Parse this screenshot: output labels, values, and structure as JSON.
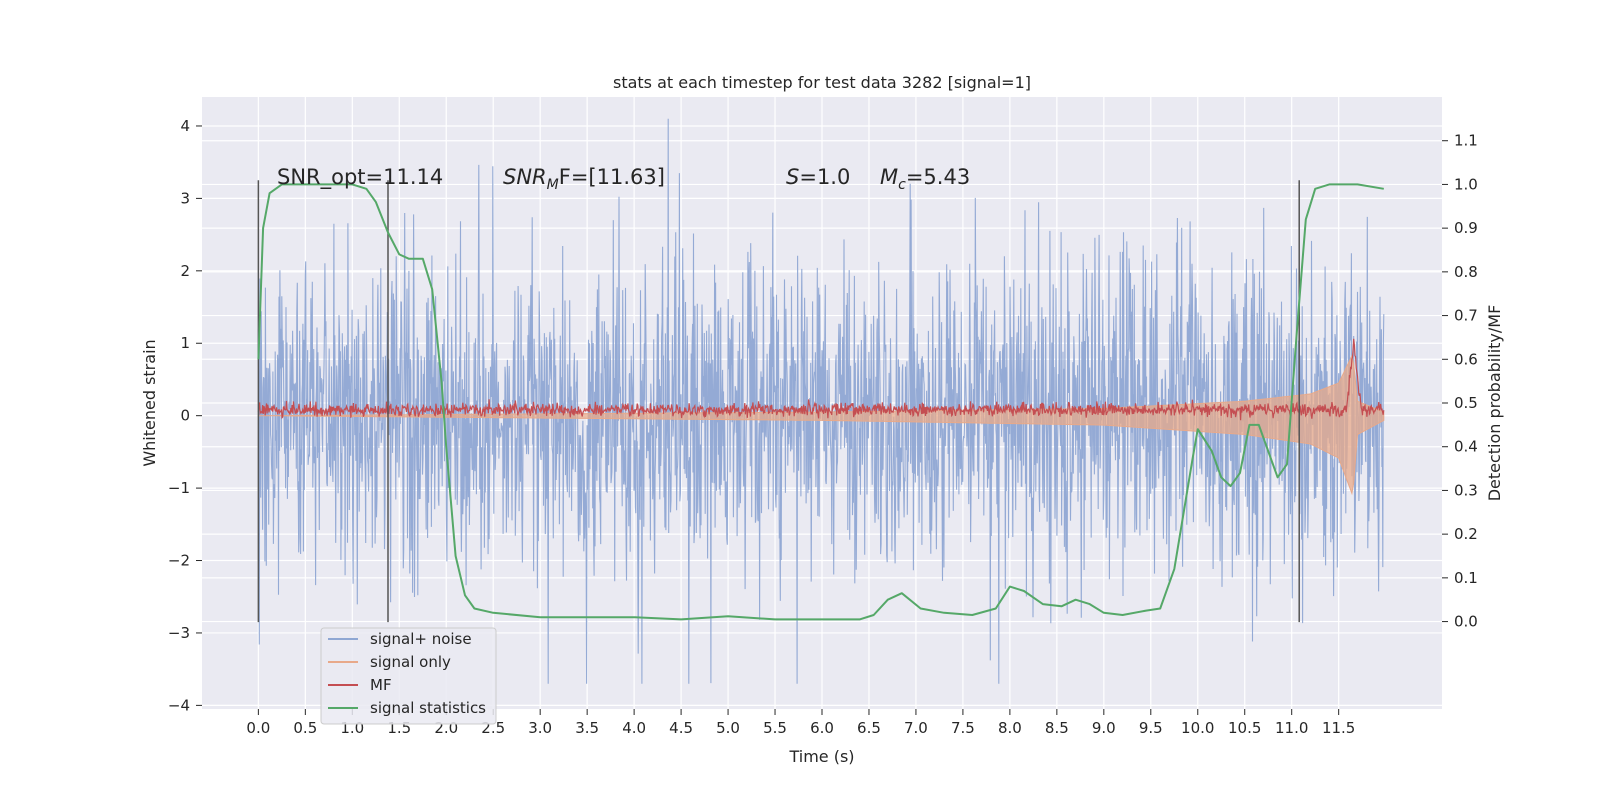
{
  "chart_data": {
    "type": "line",
    "title": "stats at each timestep for test data 3282 [signal=1]",
    "xlabel": "Time (s)",
    "ylabel_left": "Whitened strain",
    "ylabel_right": "Detection probability/MF",
    "xlim": [
      -0.6,
      12.6
    ],
    "ylim_left": [
      -4.05,
      4.4
    ],
    "ylim_right": [
      -0.2,
      1.2
    ],
    "x_ticks": [
      "0.0",
      "0.5",
      "1.0",
      "1.5",
      "2.0",
      "2.5",
      "3.0",
      "3.5",
      "4.0",
      "4.5",
      "5.0",
      "5.5",
      "6.0",
      "6.5",
      "7.0",
      "7.5",
      "8.0",
      "8.5",
      "9.0",
      "9.5",
      "10.0",
      "10.5",
      "11.0",
      "11.5"
    ],
    "y_ticks_left": [
      "4",
      "3",
      "2",
      "1",
      "0",
      "−1",
      "−2",
      "−3",
      "−4"
    ],
    "y_ticks_right": [
      "1.1",
      "1.0",
      "0.9",
      "0.8",
      "0.7",
      "0.6",
      "0.5",
      "0.4",
      "0.3",
      "0.2",
      "0.1",
      "0.0"
    ],
    "grid": true,
    "legend_placement": "lower-left",
    "annotations": {
      "snr_opt": "SNR_opt=11.14",
      "snr_mf_base": "SNR",
      "snr_mf_sub": "M",
      "snr_mf_rest": "F=[11.63]",
      "s_value_sym": "S",
      "s_value_rest": "=1.0",
      "mc_sym": "M",
      "mc_sub": "c",
      "mc_rest": "=5.43"
    },
    "vertical_lines": [
      {
        "x": 0.0,
        "y_range": [
          -2.85,
          3.25
        ]
      },
      {
        "x": 1.38,
        "y_range": [
          -2.85,
          3.25
        ]
      },
      {
        "x": 11.08,
        "y_range": [
          -2.85,
          3.25
        ]
      }
    ],
    "series": [
      {
        "name": "signal+ noise",
        "color": "#8fa7d3",
        "axis": "left",
        "x_range": [
          0.0,
          11.98
        ],
        "envelope": {
          "typical_abs": 1.4,
          "max": 4.1,
          "min": -3.7
        }
      },
      {
        "name": "signal only",
        "color": "#e8a98a",
        "axis": "left",
        "x_range": [
          0.0,
          11.98
        ],
        "chirp_envelope": [
          [
            0.0,
            0.0
          ],
          [
            6.0,
            0.05
          ],
          [
            9.0,
            0.1
          ],
          [
            10.5,
            0.2
          ],
          [
            11.2,
            0.3
          ],
          [
            11.5,
            0.45
          ],
          [
            11.65,
            0.85
          ],
          [
            11.7,
            0.2
          ],
          [
            11.98,
            0.05
          ]
        ]
      },
      {
        "name": "MF",
        "color": "#c44e52",
        "axis": "left",
        "x_range": [
          0.0,
          11.98
        ],
        "center": 0.08,
        "spread": 0.1,
        "peak": {
          "x": 11.66,
          "value": 1.0
        }
      },
      {
        "name": "signal statistics",
        "color": "#55a868",
        "axis": "right",
        "points": [
          [
            0.0,
            0.6
          ],
          [
            0.05,
            0.9
          ],
          [
            0.12,
            0.98
          ],
          [
            0.25,
            1.0
          ],
          [
            0.5,
            1.0
          ],
          [
            0.8,
            1.0
          ],
          [
            1.0,
            1.0
          ],
          [
            1.15,
            0.99
          ],
          [
            1.25,
            0.96
          ],
          [
            1.38,
            0.89
          ],
          [
            1.5,
            0.84
          ],
          [
            1.6,
            0.83
          ],
          [
            1.75,
            0.83
          ],
          [
            1.85,
            0.76
          ],
          [
            1.95,
            0.55
          ],
          [
            2.0,
            0.4
          ],
          [
            2.1,
            0.15
          ],
          [
            2.2,
            0.06
          ],
          [
            2.3,
            0.03
          ],
          [
            2.5,
            0.02
          ],
          [
            3.0,
            0.01
          ],
          [
            3.5,
            0.01
          ],
          [
            4.0,
            0.01
          ],
          [
            4.5,
            0.005
          ],
          [
            5.0,
            0.012
          ],
          [
            5.5,
            0.005
          ],
          [
            6.0,
            0.005
          ],
          [
            6.4,
            0.005
          ],
          [
            6.55,
            0.015
          ],
          [
            6.7,
            0.05
          ],
          [
            6.85,
            0.065
          ],
          [
            7.05,
            0.03
          ],
          [
            7.3,
            0.02
          ],
          [
            7.6,
            0.015
          ],
          [
            7.85,
            0.03
          ],
          [
            8.0,
            0.08
          ],
          [
            8.15,
            0.07
          ],
          [
            8.35,
            0.04
          ],
          [
            8.55,
            0.035
          ],
          [
            8.7,
            0.05
          ],
          [
            8.85,
            0.04
          ],
          [
            9.0,
            0.02
          ],
          [
            9.2,
            0.015
          ],
          [
            9.45,
            0.025
          ],
          [
            9.6,
            0.03
          ],
          [
            9.75,
            0.12
          ],
          [
            9.95,
            0.38
          ],
          [
            10.0,
            0.44
          ],
          [
            10.15,
            0.39
          ],
          [
            10.25,
            0.33
          ],
          [
            10.35,
            0.31
          ],
          [
            10.45,
            0.34
          ],
          [
            10.55,
            0.45
          ],
          [
            10.65,
            0.45
          ],
          [
            10.75,
            0.39
          ],
          [
            10.85,
            0.33
          ],
          [
            10.95,
            0.36
          ],
          [
            11.05,
            0.65
          ],
          [
            11.15,
            0.92
          ],
          [
            11.25,
            0.99
          ],
          [
            11.4,
            1.0
          ],
          [
            11.7,
            1.0
          ],
          [
            11.98,
            0.99
          ]
        ]
      }
    ]
  }
}
